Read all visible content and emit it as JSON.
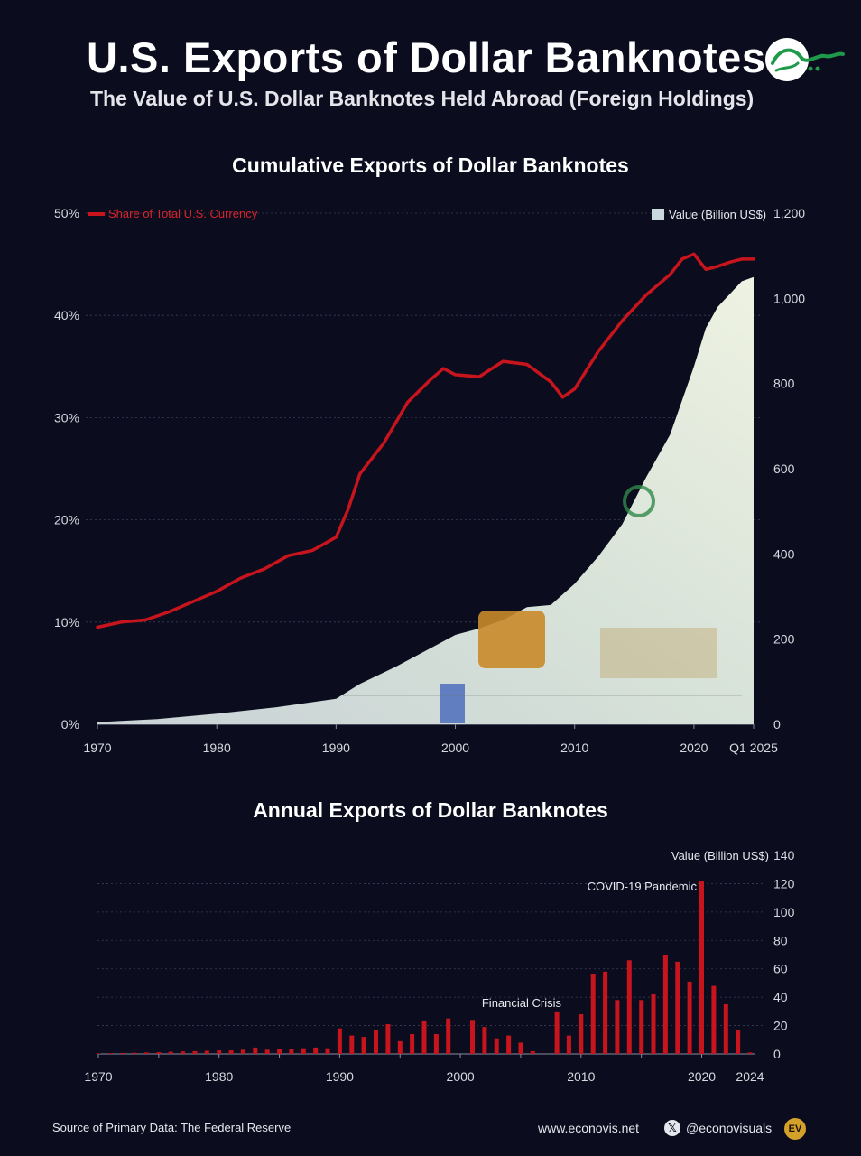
{
  "header": {
    "title": "U.S. Exports of Dollar Banknotes",
    "subtitle": "The Value of U.S. Dollar Banknotes Held Abroad (Foreign Holdings)"
  },
  "colors": {
    "background": "#0b0d1e",
    "line": "#c8141c",
    "area": "#dfe8dc",
    "bar": "#c8141c"
  },
  "chart_data": [
    {
      "type": "line",
      "title": "Cumulative Exports of Dollar Banknotes",
      "legend": [
        {
          "label": "Share of Total U.S. Currency",
          "placement": "top-left"
        },
        {
          "label": "Value (Billion US$)",
          "placement": "top-right"
        }
      ],
      "xlim": [
        1970,
        2025
      ],
      "x_ticks": [
        "1970",
        "1980",
        "1990",
        "2000",
        "2010",
        "2020",
        "Q1 2025"
      ],
      "y_left_ticks": [
        "0%",
        "10%",
        "20%",
        "30%",
        "40%",
        "50%"
      ],
      "y_right_ticks": [
        "0",
        "200",
        "400",
        "600",
        "800",
        "1,000",
        "1,200"
      ],
      "ylim_left": [
        0,
        50
      ],
      "ylim_right": [
        0,
        1200
      ],
      "grid": true,
      "series": [
        {
          "name": "Share of Total U.S. Currency",
          "axis": "left",
          "x": [
            1970,
            1972,
            1974,
            1976,
            1978,
            1980,
            1982,
            1984,
            1986,
            1988,
            1990,
            1991,
            1992,
            1994,
            1996,
            1998,
            1999,
            2000,
            2002,
            2004,
            2006,
            2008,
            2009,
            2010,
            2012,
            2014,
            2016,
            2018,
            2019,
            2020,
            2021,
            2022,
            2023,
            2024,
            2025
          ],
          "values": [
            9.5,
            10.0,
            10.2,
            11.0,
            12.0,
            13.0,
            14.3,
            15.2,
            16.5,
            17.0,
            18.3,
            21.0,
            24.5,
            27.5,
            31.5,
            33.8,
            34.8,
            34.2,
            34.0,
            35.5,
            35.2,
            33.5,
            32.0,
            32.8,
            36.5,
            39.5,
            42.0,
            44.0,
            45.5,
            46.0,
            44.5,
            44.8,
            45.2,
            45.5,
            45.5
          ]
        },
        {
          "name": "Value (Billion US$)",
          "axis": "right",
          "type": "area",
          "x": [
            1970,
            1975,
            1980,
            1985,
            1990,
            1992,
            1995,
            1998,
            2000,
            2002,
            2004,
            2006,
            2008,
            2010,
            2012,
            2014,
            2016,
            2018,
            2020,
            2021,
            2022,
            2023,
            2024,
            2025
          ],
          "values": [
            5,
            12,
            25,
            40,
            60,
            95,
            135,
            180,
            210,
            225,
            245,
            275,
            280,
            330,
            395,
            470,
            580,
            680,
            840,
            930,
            980,
            1010,
            1040,
            1050
          ]
        }
      ]
    },
    {
      "type": "bar",
      "title": "Annual Exports of Dollar Banknotes",
      "ylabel": "Value (Billion US$)",
      "xlim": [
        1970,
        2024
      ],
      "ylim": [
        0,
        140
      ],
      "x_ticks": [
        "1970",
        "1980",
        "1990",
        "2000",
        "2010",
        "2020",
        "2024"
      ],
      "y_ticks": [
        "0",
        "20",
        "40",
        "60",
        "80",
        "100",
        "120",
        "140"
      ],
      "grid": true,
      "x": [
        1970,
        1971,
        1972,
        1973,
        1974,
        1975,
        1976,
        1977,
        1978,
        1979,
        1980,
        1981,
        1982,
        1983,
        1984,
        1985,
        1986,
        1987,
        1988,
        1989,
        1990,
        1991,
        1992,
        1993,
        1994,
        1995,
        1996,
        1997,
        1998,
        1999,
        2000,
        2001,
        2002,
        2003,
        2004,
        2005,
        2006,
        2007,
        2008,
        2009,
        2010,
        2011,
        2012,
        2013,
        2014,
        2015,
        2016,
        2017,
        2018,
        2019,
        2020,
        2021,
        2022,
        2023,
        2024
      ],
      "values": [
        0.3,
        0.5,
        0.7,
        0.8,
        1,
        1.2,
        1.5,
        1.8,
        2,
        2.2,
        2.5,
        2.5,
        3,
        4.5,
        3,
        3.5,
        3.5,
        4,
        4.5,
        4,
        18,
        13,
        12,
        17,
        21,
        9,
        14,
        23,
        14,
        25,
        0,
        24,
        19,
        11,
        13,
        8,
        2,
        0,
        30,
        13,
        28,
        56,
        58,
        38,
        66,
        38,
        42,
        70,
        65,
        51,
        122,
        48,
        35,
        17,
        1
      ],
      "annotations": [
        {
          "label": "COVID-19 Pandemic",
          "x": 2020
        },
        {
          "label": "Financial Crisis",
          "x": 2008
        }
      ]
    }
  ],
  "footer": {
    "source": "Source of Primary Data: The Federal Reserve",
    "website": "www.econovis.net",
    "social_icon": "x-icon",
    "handle": "@econovisuals",
    "brand_mark": "EV"
  }
}
